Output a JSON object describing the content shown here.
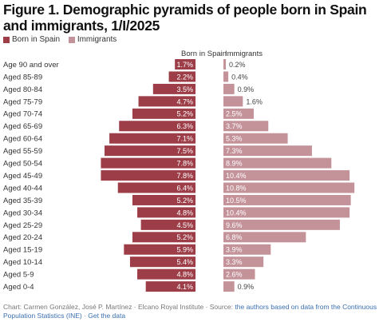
{
  "title": "Figure 1. Demographic pyramids of people born in Spain and immigrants, 1/I/2025",
  "legend": {
    "items": [
      {
        "label": "Born in Spain",
        "color": "#9c3d47"
      },
      {
        "label": "Immigrants",
        "color": "#c4939a"
      }
    ]
  },
  "column_headers": {
    "left": "Born in Spain",
    "right": "Immigrants"
  },
  "footer": {
    "credit": "Chart: Carmen González, José P. Martínez · Elcano Royal Institute · Source: ",
    "source": "the authors based on data from the Continuous Population Statistics (INE)",
    "separator": " · ",
    "get_data": "Get the data"
  },
  "chart_data": {
    "type": "bar",
    "orientation": "horizontal-pyramid",
    "categories": [
      "Age 90 and over",
      "Aged 85-89",
      "Aged 80-84",
      "Aged 75-79",
      "Aged 70-74",
      "Aged 65-69",
      "Aged 60-64",
      "Aged 55-59",
      "Aged 50-54",
      "Aged 45-49",
      "Aged 40-44",
      "Aged 35-39",
      "Aged 30-34",
      "Aged 25-29",
      "Aged 20-24",
      "Aged 15-19",
      "Aged 10-14",
      "Aged 5-9",
      "Aged 0-4"
    ],
    "series": [
      {
        "name": "Born in Spain",
        "values": [
          1.7,
          2.2,
          3.5,
          4.7,
          5.2,
          6.3,
          7.1,
          7.5,
          7.8,
          7.8,
          6.4,
          5.2,
          4.8,
          4.5,
          5.2,
          5.9,
          5.4,
          4.8,
          4.1
        ],
        "labels": [
          "1.7%",
          "2.2%",
          "3.5%",
          "4.7%",
          "5.2%",
          "6.3%",
          "7.1%",
          "7.5%",
          "7.8%",
          "7.8%",
          "6.4%",
          "5.2%",
          "4.8%",
          "4.5%",
          "5.2%",
          "5.9%",
          "5.4%",
          "4.8%",
          "4.1%"
        ],
        "color": "#9c3d47"
      },
      {
        "name": "Immigrants",
        "values": [
          0.2,
          0.4,
          0.9,
          1.6,
          2.5,
          3.7,
          5.3,
          7.3,
          8.9,
          10.4,
          10.8,
          10.5,
          10.4,
          9.6,
          6.8,
          3.9,
          3.3,
          2.6,
          0.9
        ],
        "labels": [
          "0.2%",
          "0.4%",
          "0.9%",
          "1.6%",
          "2.5%",
          "3.7%",
          "5.3%",
          "7.3%",
          "8.9%",
          "10.4%",
          "10.8%",
          "10.5%",
          "10.4%",
          "9.6%",
          "6.8%",
          "3.9%",
          "3.3%",
          "2.6%",
          "0.9%"
        ],
        "color": "#c4939a"
      }
    ]
  }
}
